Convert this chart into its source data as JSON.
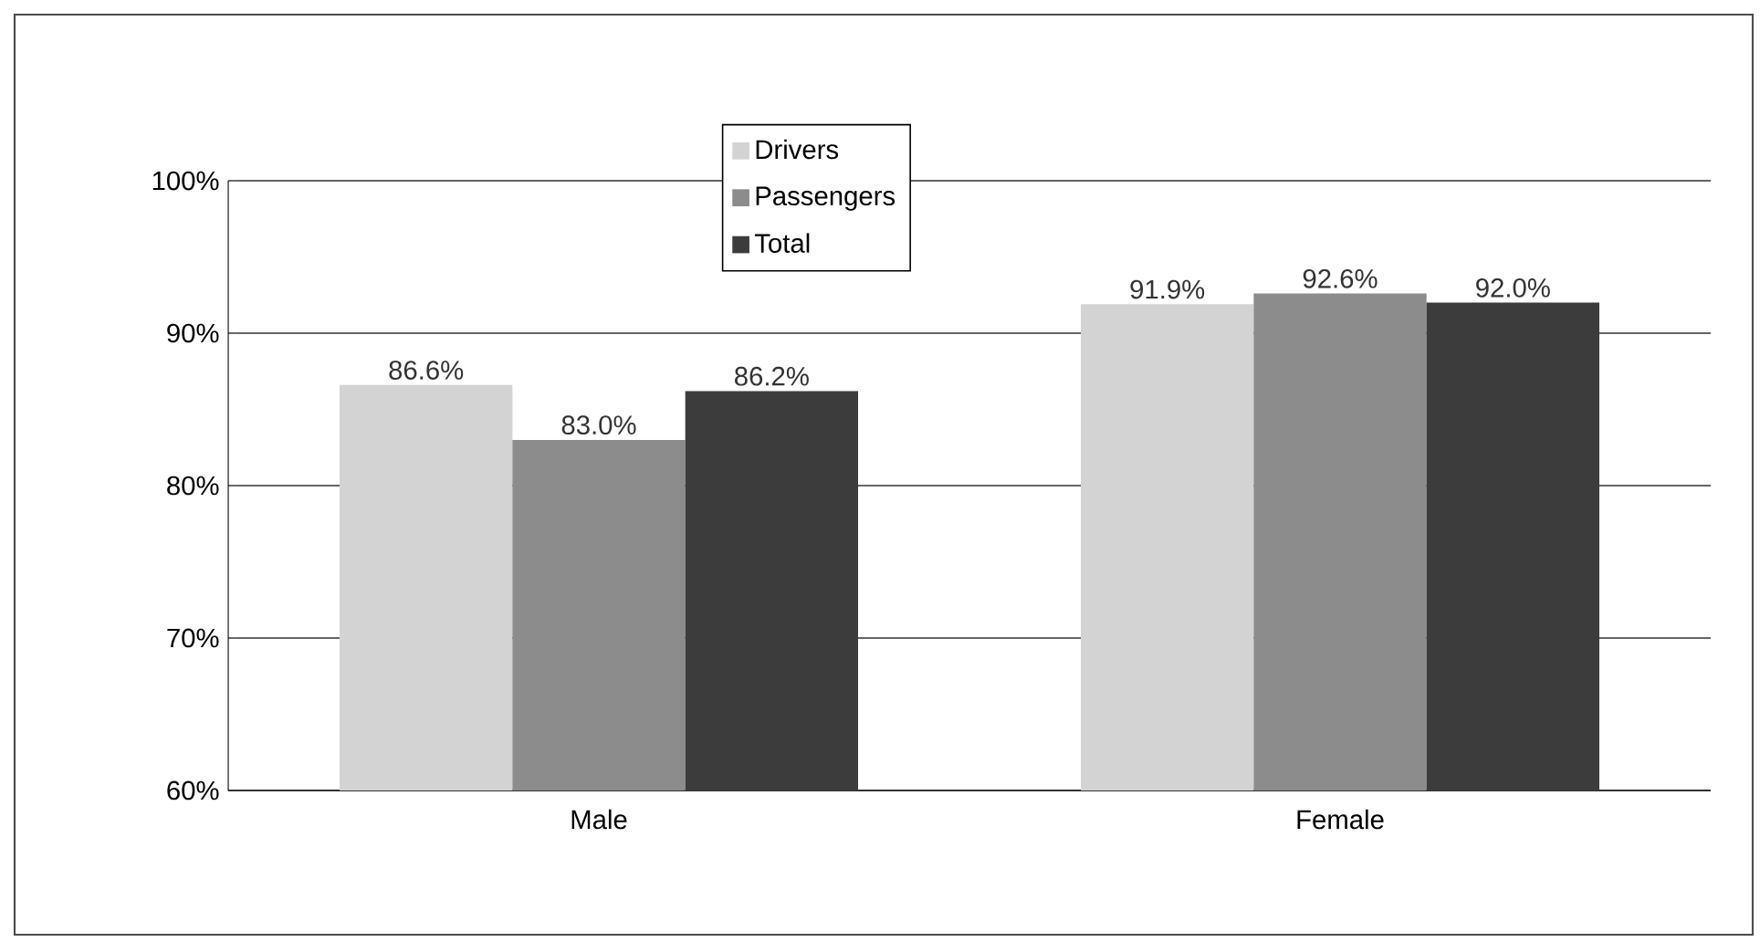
{
  "chart_data": {
    "type": "bar",
    "categories": [
      "Male",
      "Female"
    ],
    "series": [
      {
        "name": "Drivers",
        "color": "#d3d3d3",
        "values": [
          86.6,
          91.9
        ],
        "value_labels": [
          "86.6%",
          "91.9%"
        ]
      },
      {
        "name": "Passengers",
        "color": "#8c8c8c",
        "values": [
          83.0,
          92.6
        ],
        "value_labels": [
          "83.0%",
          "92.6%"
        ]
      },
      {
        "name": "Total",
        "color": "#3c3c3c",
        "values": [
          86.2,
          92.0
        ],
        "value_labels": [
          "86.2%",
          "92.0%"
        ]
      }
    ],
    "ylim": [
      60,
      100
    ],
    "yticks": [
      {
        "value": 60,
        "label": "60%"
      },
      {
        "value": 70,
        "label": "70%"
      },
      {
        "value": 80,
        "label": "80%"
      },
      {
        "value": 90,
        "label": "90%"
      },
      {
        "value": 100,
        "label": "100%"
      }
    ],
    "grid": "y",
    "legend": "top"
  }
}
